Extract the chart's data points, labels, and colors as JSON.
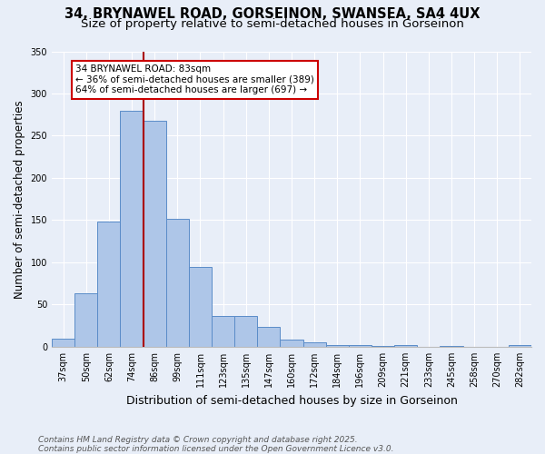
{
  "title1": "34, BRYNAWEL ROAD, GORSEINON, SWANSEA, SA4 4UX",
  "title2": "Size of property relative to semi-detached houses in Gorseinon",
  "xlabel": "Distribution of semi-detached houses by size in Gorseinon",
  "ylabel": "Number of semi-detached properties",
  "categories": [
    "37sqm",
    "50sqm",
    "62sqm",
    "74sqm",
    "86sqm",
    "99sqm",
    "111sqm",
    "123sqm",
    "135sqm",
    "147sqm",
    "160sqm",
    "172sqm",
    "184sqm",
    "196sqm",
    "209sqm",
    "221sqm",
    "233sqm",
    "245sqm",
    "258sqm",
    "270sqm",
    "282sqm"
  ],
  "values": [
    10,
    63,
    148,
    280,
    268,
    152,
    95,
    37,
    37,
    24,
    9,
    5,
    2,
    2,
    1,
    2,
    0,
    1,
    0,
    0,
    2
  ],
  "bar_color": "#aec6e8",
  "bar_edge_color": "#5a8cc8",
  "vline_index": 4,
  "annotation_text_line1": "34 BRYNAWEL ROAD: 83sqm",
  "annotation_text_line2": "← 36% of semi-detached houses are smaller (389)",
  "annotation_text_line3": "64% of semi-detached houses are larger (697) →",
  "vline_color": "#aa0000",
  "annotation_box_facecolor": "#ffffff",
  "annotation_box_edgecolor": "#cc0000",
  "ylim_max": 350,
  "yticks": [
    0,
    50,
    100,
    150,
    200,
    250,
    300,
    350
  ],
  "footer_text": "Contains HM Land Registry data © Crown copyright and database right 2025.\nContains public sector information licensed under the Open Government Licence v3.0.",
  "bg_color": "#e8eef8",
  "grid_color": "#ffffff",
  "title1_fontsize": 10.5,
  "title2_fontsize": 9.5,
  "tick_fontsize": 7,
  "ylabel_fontsize": 8.5,
  "xlabel_fontsize": 9,
  "annotation_fontsize": 7.5,
  "footer_fontsize": 6.5
}
